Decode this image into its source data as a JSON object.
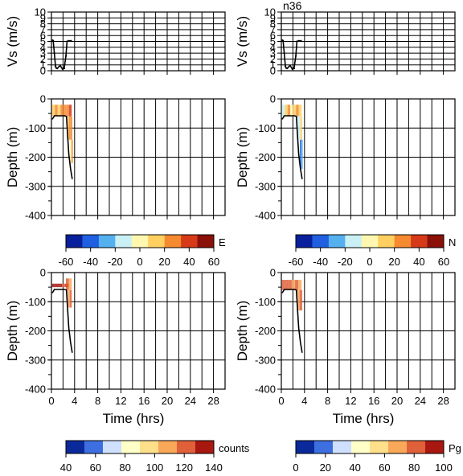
{
  "figure_tag": "n36",
  "time_axis": {
    "label": "Time (hrs)",
    "ticks": [
      "0",
      "4",
      "8",
      "12",
      "16",
      "20",
      "24",
      "28"
    ],
    "xlim": [
      0,
      30
    ]
  },
  "vs_axis": {
    "label": "Vs (m/s)",
    "ticks": [
      "0",
      "1",
      "2",
      "3",
      "4",
      "5",
      "6",
      "7",
      "8",
      "9",
      "10"
    ],
    "ylim": [
      0,
      10
    ]
  },
  "depth_axis": {
    "label": "Depth (m)",
    "ticks": [
      "0",
      "-100",
      "-200",
      "-300",
      "-400"
    ],
    "ylim": [
      -400,
      0
    ]
  },
  "colorbars": [
    {
      "label": "E",
      "ticks": [
        "-60",
        "-40",
        "-20",
        "0",
        "20",
        "40",
        "60"
      ],
      "colors": [
        "#08209c",
        "#1f5fe0",
        "#55b0f0",
        "#c9f0f5",
        "#fff7b0",
        "#ffd060",
        "#f58a30",
        "#d63a18",
        "#8a1008"
      ]
    },
    {
      "label": "N",
      "ticks": [
        "-60",
        "-40",
        "-20",
        "0",
        "20",
        "40",
        "60"
      ],
      "colors": [
        "#08209c",
        "#1f5fe0",
        "#55b0f0",
        "#c9f0f5",
        "#fff7b0",
        "#ffd060",
        "#f58a30",
        "#d63a18",
        "#8a1008"
      ]
    },
    {
      "label": "counts",
      "ticks": [
        "40",
        "60",
        "80",
        "100",
        "120",
        "140"
      ],
      "colors": [
        "#0a2a9c",
        "#3e6fe0",
        "#cfe0ff",
        "#ffffc8",
        "#ffe08a",
        "#f9a85a",
        "#e0603a",
        "#a81810"
      ]
    },
    {
      "label": "Pg",
      "ticks": [
        "0",
        "20",
        "40",
        "60",
        "80",
        "100"
      ],
      "colors": [
        "#0a2a9c",
        "#3e6fe0",
        "#cfe0ff",
        "#ffffc8",
        "#ffe08a",
        "#f9a85a",
        "#e0603a",
        "#a81810"
      ]
    }
  ],
  "chart_data": [
    {
      "type": "line",
      "panel": "vs-left",
      "xlabel": "",
      "ylabel": "Vs (m/s)",
      "xlim": [
        0,
        30
      ],
      "ylim": [
        0,
        10
      ],
      "grid": true,
      "series": [
        {
          "x": [
            0.2,
            0.3,
            0.5,
            0.7,
            0.8,
            1.0,
            1.5,
            1.9,
            2.2,
            2.5,
            2.7,
            3.0,
            3.4
          ],
          "y": [
            5.2,
            5.1,
            3.0,
            0.8,
            0.5,
            0.4,
            0.9,
            0.3,
            0.4,
            2.5,
            5.0,
            5.1,
            5.1
          ]
        }
      ]
    },
    {
      "type": "line",
      "panel": "vs-right",
      "xlabel": "",
      "ylabel": "Vs (m/s)",
      "xlim": [
        0,
        30
      ],
      "ylim": [
        0,
        10
      ],
      "grid": true,
      "series": [
        {
          "x": [
            0.2,
            0.3,
            0.5,
            0.7,
            0.8,
            1.0,
            1.5,
            1.9,
            2.2,
            2.5,
            2.7,
            3.0,
            3.4
          ],
          "y": [
            5.2,
            5.1,
            3.0,
            0.8,
            0.5,
            0.4,
            0.9,
            0.3,
            0.4,
            2.5,
            5.0,
            5.1,
            5.1
          ]
        }
      ]
    },
    {
      "type": "heatmap",
      "panel": "depth-E",
      "xlabel": "",
      "ylabel": "Depth (m)",
      "colorbar": "E",
      "xlim": [
        0,
        30
      ],
      "ylim": [
        -400,
        0
      ],
      "grid": true,
      "profile": {
        "x": [
          0.1,
          0.3,
          0.5,
          1.0,
          1.6,
          2.3,
          2.6,
          2.8,
          3.0,
          3.3,
          3.6
        ],
        "y": [
          -70,
          -65,
          -58,
          -58,
          -58,
          -58,
          -60,
          -130,
          -190,
          -240,
          -275
        ]
      },
      "patches": [
        {
          "x0": 0.1,
          "x1": 3.5,
          "y0": -20,
          "y1": -60,
          "values": [
            10,
            20,
            15,
            25,
            30,
            20,
            35
          ]
        },
        {
          "x0": 2.7,
          "x1": 3.6,
          "y0": -60,
          "y1": -140,
          "values": [
            15,
            25,
            30
          ]
        },
        {
          "x0": 3.2,
          "x1": 3.7,
          "y0": -140,
          "y1": -220,
          "values": [
            5,
            20
          ]
        }
      ]
    },
    {
      "type": "heatmap",
      "panel": "depth-N",
      "xlabel": "",
      "ylabel": "Depth (m)",
      "colorbar": "N",
      "xlim": [
        0,
        30
      ],
      "ylim": [
        -400,
        0
      ],
      "grid": true,
      "profile": {
        "x": [
          0.1,
          0.3,
          0.5,
          1.0,
          1.6,
          2.3,
          2.6,
          2.8,
          3.0,
          3.3,
          3.6
        ],
        "y": [
          -70,
          -65,
          -58,
          -58,
          -58,
          -58,
          -60,
          -130,
          -190,
          -240,
          -275
        ]
      },
      "patches": [
        {
          "x0": 0.1,
          "x1": 3.5,
          "y0": -20,
          "y1": -60,
          "values": [
            -15,
            10,
            20,
            -5,
            15,
            25,
            10
          ]
        },
        {
          "x0": 2.7,
          "x1": 3.6,
          "y0": -60,
          "y1": -140,
          "values": [
            -20,
            -10,
            15
          ]
        },
        {
          "x0": 3.2,
          "x1": 3.7,
          "y0": -140,
          "y1": -240,
          "values": [
            -40,
            -25
          ]
        }
      ]
    },
    {
      "type": "heatmap",
      "panel": "depth-counts",
      "xlabel": "Time (hrs)",
      "ylabel": "Depth (m)",
      "colorbar": "counts",
      "xlim": [
        0,
        30
      ],
      "ylim": [
        -400,
        0
      ],
      "grid": true,
      "profile": {
        "x": [
          0.1,
          0.3,
          0.5,
          1.0,
          1.6,
          2.3,
          2.6,
          2.8,
          3.0,
          3.3,
          3.6
        ],
        "y": [
          -70,
          -65,
          -58,
          -58,
          -58,
          -58,
          -60,
          -130,
          -190,
          -240,
          -275
        ]
      },
      "patches": [
        {
          "x0": 0.1,
          "x1": 3.0,
          "y0": -38,
          "y1": -50,
          "values": [
            140,
            135,
            140,
            125,
            138
          ]
        },
        {
          "x0": 2.5,
          "x1": 3.5,
          "y0": -20,
          "y1": -60,
          "values": [
            120,
            110
          ]
        },
        {
          "x0": 2.8,
          "x1": 3.5,
          "y0": -60,
          "y1": -120,
          "values": [
            105,
            115
          ]
        }
      ]
    },
    {
      "type": "heatmap",
      "panel": "depth-Pg",
      "xlabel": "Time (hrs)",
      "ylabel": "Depth (m)",
      "colorbar": "Pg",
      "xlim": [
        0,
        30
      ],
      "ylim": [
        -400,
        0
      ],
      "grid": true,
      "profile": {
        "x": [
          0.1,
          0.3,
          0.5,
          1.0,
          1.6,
          2.3,
          2.6,
          2.8,
          3.0,
          3.3,
          3.6
        ],
        "y": [
          -70,
          -65,
          -58,
          -58,
          -58,
          -58,
          -60,
          -130,
          -190,
          -240,
          -275
        ]
      },
      "patches": [
        {
          "x0": 0.1,
          "x1": 3.5,
          "y0": -25,
          "y1": -60,
          "values": [
            75,
            85,
            80,
            70,
            75,
            65
          ]
        },
        {
          "x0": 2.7,
          "x1": 3.6,
          "y0": -60,
          "y1": -130,
          "values": [
            70,
            80
          ]
        }
      ]
    }
  ]
}
